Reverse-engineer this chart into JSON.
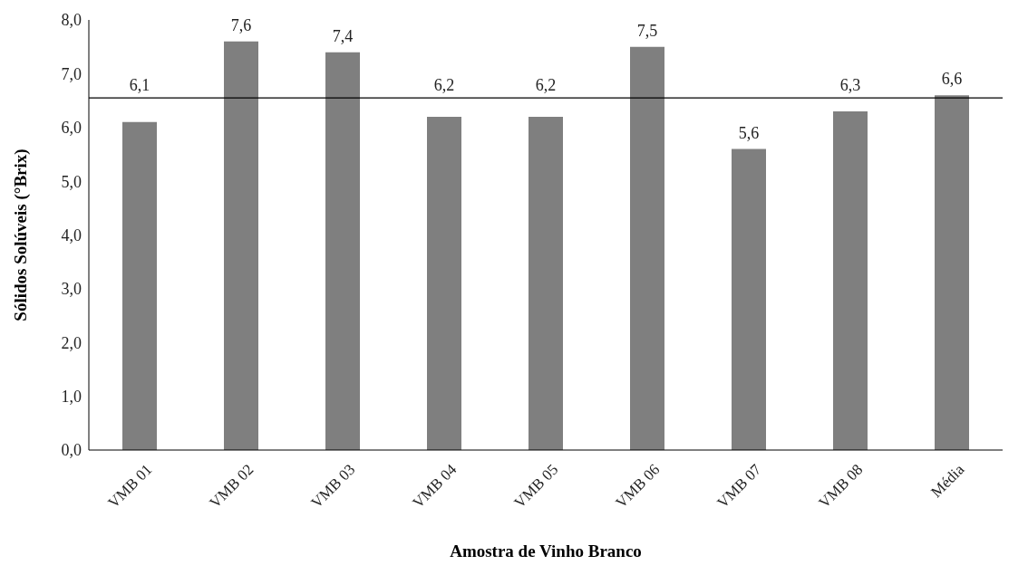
{
  "chart_data": {
    "type": "bar",
    "xlabel": "Amostra de Vinho Branco",
    "ylabel": "Sólidos Solúveis (°Brix)",
    "categories": [
      "VMB 01",
      "VMB 02",
      "VMB 03",
      "VMB 04",
      "VMB 05",
      "VMB 06",
      "VMB 07",
      "VMB 08",
      "Média"
    ],
    "values": [
      6.1,
      7.6,
      7.4,
      6.2,
      6.2,
      7.5,
      5.6,
      6.3,
      6.6
    ],
    "value_labels": [
      "6,1",
      "7,6",
      "7,4",
      "6,2",
      "6,2",
      "7,5",
      "5,6",
      "6,3",
      "6,6"
    ],
    "color": "#7f7f7f",
    "ylim": [
      0,
      8
    ],
    "yticks": [
      {
        "value": 0,
        "label": "0,0"
      },
      {
        "value": 1,
        "label": "1,0"
      },
      {
        "value": 2,
        "label": "2,0"
      },
      {
        "value": 3,
        "label": "3,0"
      },
      {
        "value": 4,
        "label": "4,0"
      },
      {
        "value": 5,
        "label": "5,0"
      },
      {
        "value": 6,
        "label": "6,0"
      },
      {
        "value": 7,
        "label": "7,0"
      },
      {
        "value": 8,
        "label": "8,0"
      }
    ],
    "ref_lines": [
      {
        "axis": "y",
        "value": 6.55,
        "color": "#000000"
      }
    ],
    "grid": false,
    "legend": false
  }
}
